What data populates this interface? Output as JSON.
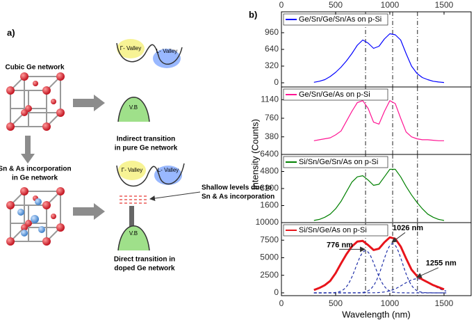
{
  "diagram": {
    "panel_label": "a)",
    "top_network": "Cubic Ge network",
    "top_gamma": "Γ- Valley",
    "top_l": "L- Valley",
    "top_vb": "V.B",
    "top_caption": [
      "Indirect transition",
      "in pure Ge network"
    ],
    "bottom_network": [
      "Sn & As incorporation",
      "in Ge network"
    ],
    "bottom_gamma": "Γ- Valley",
    "bottom_l": "L- Valley",
    "bottom_vb": "V.B",
    "shallow": [
      "Shallow levels due to",
      "Sn & As incorporation"
    ],
    "bottom_caption": [
      "Direct transition in",
      "doped Ge network"
    ]
  },
  "panel_label": "b)",
  "ylabel": "Intensity (Counts)",
  "chart_data": [
    {
      "type": "line",
      "xlim": [
        0,
        1750
      ],
      "xticks": [
        0,
        500,
        1000,
        1500
      ],
      "ylim": [
        -80,
        1360
      ],
      "yticks": [
        0,
        320,
        640,
        960
      ],
      "x": [
        300,
        350,
        400,
        450,
        500,
        550,
        600,
        650,
        700,
        750,
        800,
        850,
        900,
        950,
        1000,
        1050,
        1100,
        1150,
        1200,
        1250,
        1300,
        1350,
        1400,
        1450,
        1500
      ],
      "series": [
        {
          "name": "Ge/Sn/Ge/Sn/As on p-Si",
          "color": "#0000ff",
          "values": [
            10,
            30,
            60,
            120,
            200,
            300,
            420,
            560,
            720,
            820,
            760,
            660,
            700,
            840,
            940,
            920,
            820,
            560,
            320,
            180,
            100,
            60,
            30,
            15,
            5
          ]
        }
      ]
    },
    {
      "type": "line",
      "xlim": [
        0,
        1750
      ],
      "ylim": [
        20,
        1400
      ],
      "yticks": [
        380,
        760,
        1140
      ],
      "x": [
        300,
        350,
        400,
        450,
        500,
        550,
        600,
        650,
        700,
        750,
        800,
        850,
        900,
        950,
        1000,
        1050,
        1100,
        1150,
        1200,
        1250,
        1300,
        1350,
        1400,
        1450,
        1500
      ],
      "series": [
        {
          "name": "Ge/Sn/Ge/As on p-Si",
          "color": "#ff1493",
          "values": [
            300,
            320,
            340,
            360,
            420,
            500,
            700,
            900,
            1080,
            1120,
            960,
            680,
            640,
            900,
            1120,
            1060,
            760,
            480,
            380,
            340,
            320,
            320,
            310,
            300,
            300
          ]
        }
      ]
    },
    {
      "type": "line",
      "xlim": [
        0,
        1750
      ],
      "ylim": [
        0,
        6400
      ],
      "yticks": [
        1600,
        3200,
        4800,
        6400
      ],
      "x": [
        300,
        350,
        400,
        450,
        500,
        550,
        600,
        650,
        700,
        750,
        800,
        850,
        900,
        950,
        1000,
        1050,
        1100,
        1150,
        1200,
        1250,
        1300,
        1350,
        1400,
        1450,
        1500
      ],
      "series": [
        {
          "name": "Si/Sn/Ge/Sn/As on p-Si",
          "color": "#008000",
          "values": [
            200,
            300,
            500,
            800,
            1300,
            2000,
            2900,
            3800,
            4300,
            4400,
            4000,
            3500,
            3600,
            4300,
            5000,
            5000,
            4300,
            3400,
            2600,
            1900,
            1300,
            800,
            500,
            300,
            200
          ]
        }
      ]
    },
    {
      "type": "line",
      "xlim": [
        0,
        1750
      ],
      "xticks": [
        0,
        500,
        1000,
        1500
      ],
      "xlabel": "Wavelength (nm)",
      "ylim": [
        -400,
        10000
      ],
      "yticks": [
        0,
        2500,
        5000,
        7500,
        10000
      ],
      "x": [
        300,
        350,
        400,
        450,
        500,
        550,
        600,
        650,
        700,
        750,
        800,
        850,
        900,
        950,
        1000,
        1050,
        1100,
        1150,
        1200,
        1250,
        1300,
        1350,
        1400,
        1450,
        1500
      ],
      "series": [
        {
          "name": "Si/Sn/Ge/As on p-Si",
          "color": "#e8141b",
          "values": [
            400,
            700,
            1100,
            1700,
            2800,
            4200,
            5500,
            6600,
            7300,
            7400,
            6800,
            6100,
            6300,
            7200,
            7900,
            7700,
            6600,
            4900,
            3300,
            2400,
            1900,
            1500,
            1100,
            800,
            500
          ]
        }
      ],
      "fit_components": [
        {
          "center": 776,
          "amplitude": 6000,
          "sigma": 90
        },
        {
          "center": 1026,
          "amplitude": 7000,
          "sigma": 90
        },
        {
          "center": 1255,
          "amplitude": 2000,
          "sigma": 130
        }
      ],
      "fit_color": "#1f2fa8",
      "annotations": [
        {
          "text": "776 nm",
          "x": 776
        },
        {
          "text": "1026 nm",
          "x": 1026
        },
        {
          "text": "1255 nm",
          "x": 1255
        }
      ]
    }
  ]
}
